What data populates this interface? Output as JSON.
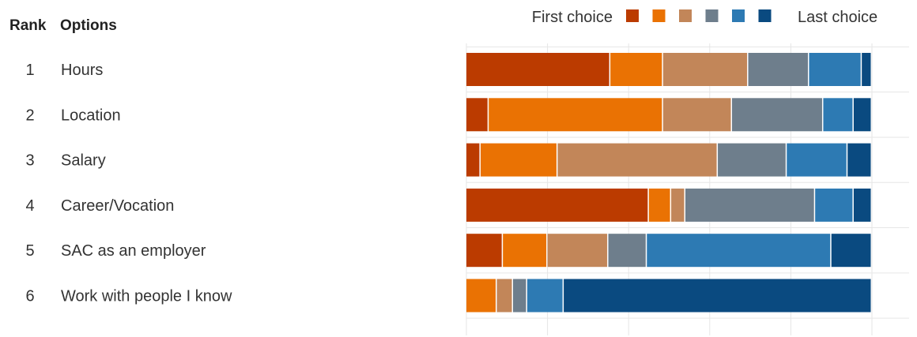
{
  "chart_data": {
    "type": "bar",
    "stacked": true,
    "orientation": "horizontal",
    "columns": {
      "rank_header": "Rank",
      "options_header": "Options"
    },
    "legend": {
      "start_label": "First choice",
      "end_label": "Last choice",
      "placement": "top-right",
      "colors": [
        "#bb3b00",
        "#ea7203",
        "#c28659",
        "#6e7e8c",
        "#2d7ab3",
        "#0a4a80"
      ]
    },
    "ranks": [
      "1",
      "2",
      "3",
      "4",
      "5",
      "6"
    ],
    "categories": [
      "Hours",
      "Location",
      "Salary",
      "Career/Vocation",
      "SAC as an employer",
      "Work with people I know"
    ],
    "xlim": [
      0,
      100
    ],
    "grid": true,
    "series": [
      {
        "values": [
          35.5,
          5.5,
          3.5,
          45.0,
          9.0,
          0.0
        ]
      },
      {
        "values": [
          13.0,
          43.0,
          19.0,
          5.5,
          11.0,
          7.5
        ]
      },
      {
        "values": [
          21.0,
          17.0,
          39.5,
          3.5,
          15.0,
          4.0
        ]
      },
      {
        "values": [
          15.0,
          22.5,
          17.0,
          32.0,
          9.5,
          3.5
        ]
      },
      {
        "values": [
          13.0,
          7.5,
          15.0,
          9.5,
          45.5,
          9.0
        ]
      },
      {
        "values": [
          2.5,
          4.5,
          6.0,
          4.5,
          10.0,
          76.0
        ]
      }
    ]
  }
}
